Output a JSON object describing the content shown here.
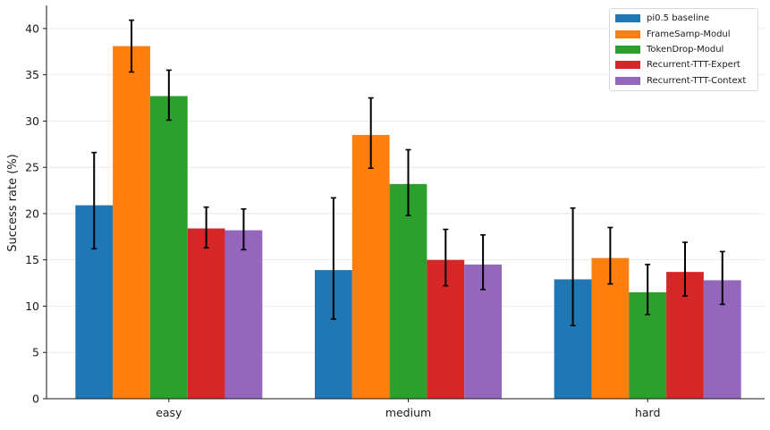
{
  "chart_data": {
    "type": "bar",
    "title": "",
    "xlabel": "",
    "ylabel": "Success rate (%)",
    "ylim": [
      0,
      42.5
    ],
    "yticks": [
      0,
      5,
      10,
      15,
      20,
      25,
      30,
      35,
      40
    ],
    "grid": "horizontal",
    "legend_position": "top-right",
    "categories": [
      "easy",
      "medium",
      "hard"
    ],
    "series": [
      {
        "name": "pi0.5 baseline",
        "color": "#1f77b4",
        "values": [
          20.9,
          13.9,
          12.9
        ],
        "err_low": [
          16.2,
          8.6,
          7.9
        ],
        "err_high": [
          26.6,
          21.7,
          20.6
        ]
      },
      {
        "name": "FrameSamp-Modul",
        "color": "#ff7f0e",
        "values": [
          38.1,
          28.5,
          15.2
        ],
        "err_low": [
          35.3,
          24.9,
          12.4
        ],
        "err_high": [
          40.9,
          32.5,
          18.5
        ]
      },
      {
        "name": "TokenDrop-Modul",
        "color": "#2ca02c",
        "values": [
          32.7,
          23.2,
          11.5
        ],
        "err_low": [
          30.1,
          19.8,
          9.1
        ],
        "err_high": [
          35.5,
          26.9,
          14.5
        ]
      },
      {
        "name": "Recurrent-TTT-Expert",
        "color": "#d62728",
        "values": [
          18.4,
          15.0,
          13.7
        ],
        "err_low": [
          16.3,
          12.2,
          11.1
        ],
        "err_high": [
          20.7,
          18.3,
          16.9
        ]
      },
      {
        "name": "Recurrent-TTT-Context",
        "color": "#9467bd",
        "values": [
          18.2,
          14.5,
          12.8
        ],
        "err_low": [
          16.1,
          11.8,
          10.2
        ],
        "err_high": [
          20.5,
          17.7,
          15.9
        ]
      }
    ]
  }
}
